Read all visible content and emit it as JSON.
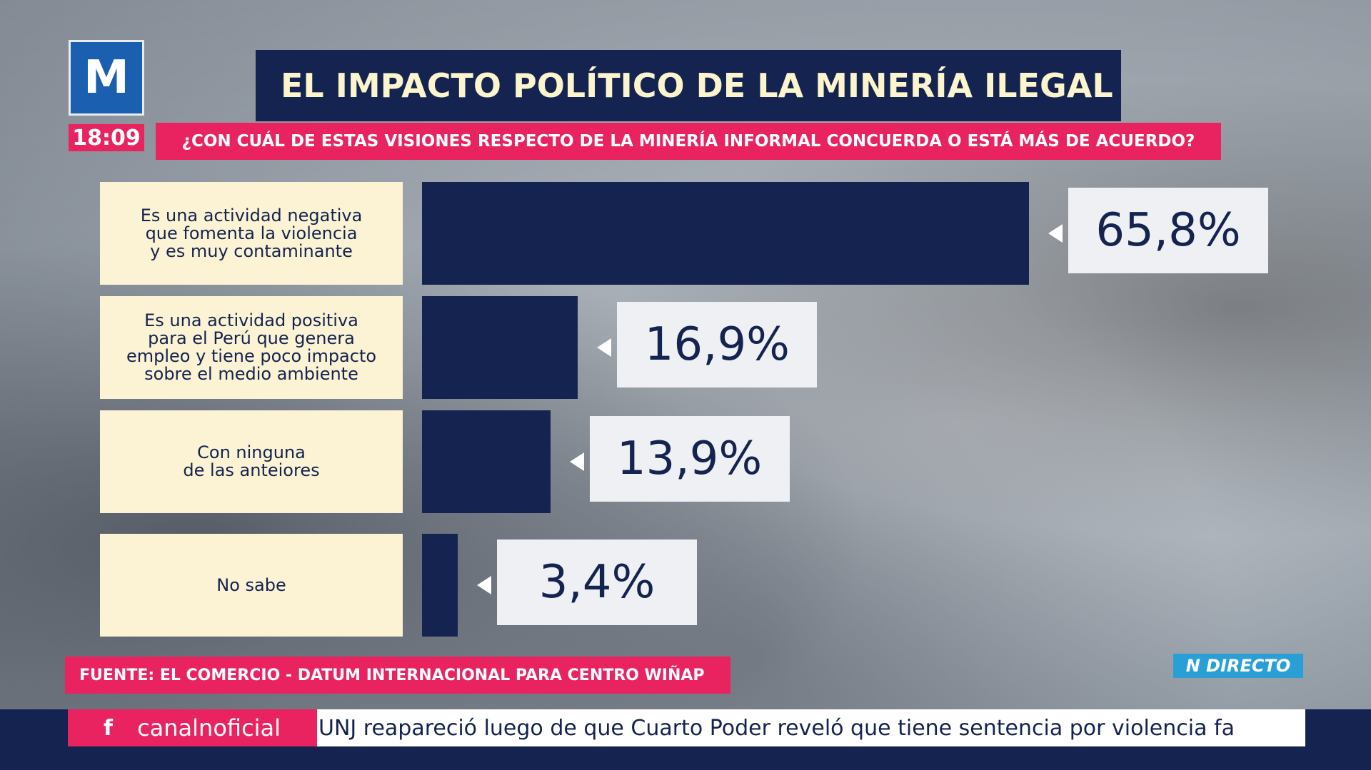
{
  "branding": {
    "logo_letter": "M",
    "clock": "18:09",
    "live_badge": "N DIRECTO",
    "accent": "#e8235f",
    "navy": "#14234f",
    "cream": "#fbf3d4"
  },
  "chart_data": {
    "type": "bar",
    "orientation": "horizontal",
    "title": "EL IMPACTO POLÍTICO DE LA MINERÍA ILEGAL",
    "subtitle": "¿CON CUÁL DE ESTAS VISIONES RESPECTO DE LA MINERÍA INFORMAL CONCUERDA O ESTÁ MÁS DE ACUERDO?",
    "categories": [
      "Es una actividad negativa\nque fomenta la violencia\ny es muy contaminante",
      "Es una actividad positiva\npara el Perú que genera\nempleo y tiene poco impacto\nsobre el medio ambiente",
      "Con ninguna\nde las anteiores",
      "No sabe"
    ],
    "values": [
      65.8,
      16.9,
      13.9,
      3.4
    ],
    "value_labels": [
      "65,8%",
      "16,9%",
      "13,9%",
      "3,4%"
    ],
    "unit": "%"
  },
  "source": "FUENTE: EL COMERCIO - DATUM INTERNACIONAL PARA CENTRO WIÑAP",
  "ticker": {
    "social_icon": "facebook-icon",
    "social_glyph": "f",
    "social_handle": "canalnoficial",
    "headline": "UNJ reapareció luego de que Cuarto Poder reveló que tiene sentencia por violencia fa"
  }
}
